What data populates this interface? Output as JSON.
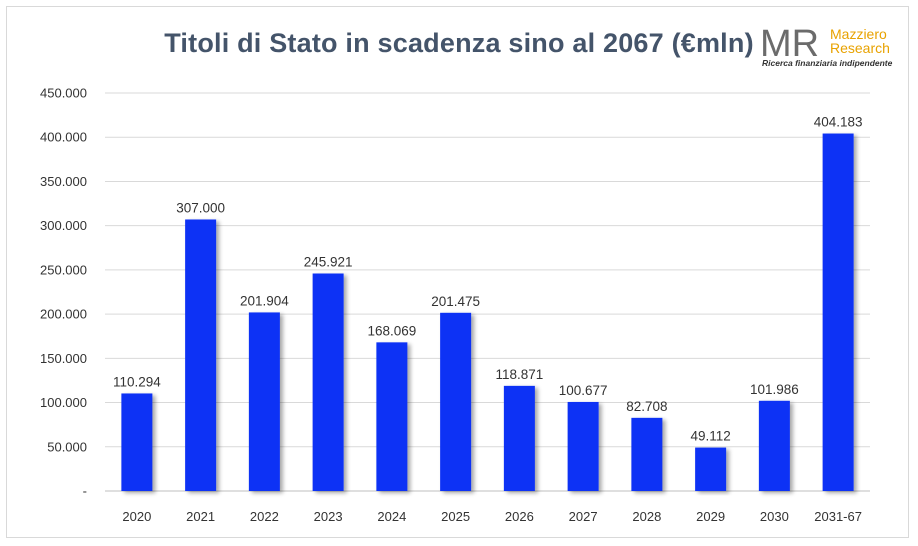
{
  "chart_data": {
    "type": "bar",
    "title": "Titoli di Stato in scadenza sino al 2067 (€mln)",
    "categories": [
      "2020",
      "2021",
      "2022",
      "2023",
      "2024",
      "2025",
      "2026",
      "2027",
      "2028",
      "2029",
      "2030",
      "2031-67"
    ],
    "values": [
      110294,
      307000,
      201904,
      245921,
      168069,
      201475,
      118871,
      100677,
      82708,
      49112,
      101986,
      404183
    ],
    "data_labels": [
      "110.294",
      "307.000",
      "201.904",
      "245.921",
      "168.069",
      "201.475",
      "118.871",
      "100.677",
      "82.708",
      "49.112",
      "101.986",
      "404.183"
    ],
    "yticks": [
      0,
      50000,
      100000,
      150000,
      200000,
      250000,
      300000,
      350000,
      400000,
      450000
    ],
    "ytick_labels": [
      "-",
      "50.000",
      "100.000",
      "150.000",
      "200.000",
      "250.000",
      "300.000",
      "350.000",
      "400.000",
      "450.000"
    ],
    "ylim": [
      0,
      450000
    ],
    "xlabel": "",
    "ylabel": "",
    "grid": true,
    "legend": "none",
    "bar_color": "#0a33f5"
  },
  "logo": {
    "mark": "MR",
    "line1": "Mazziero",
    "line2": "Research",
    "tagline": "Ricerca finanziaria indipendente"
  }
}
